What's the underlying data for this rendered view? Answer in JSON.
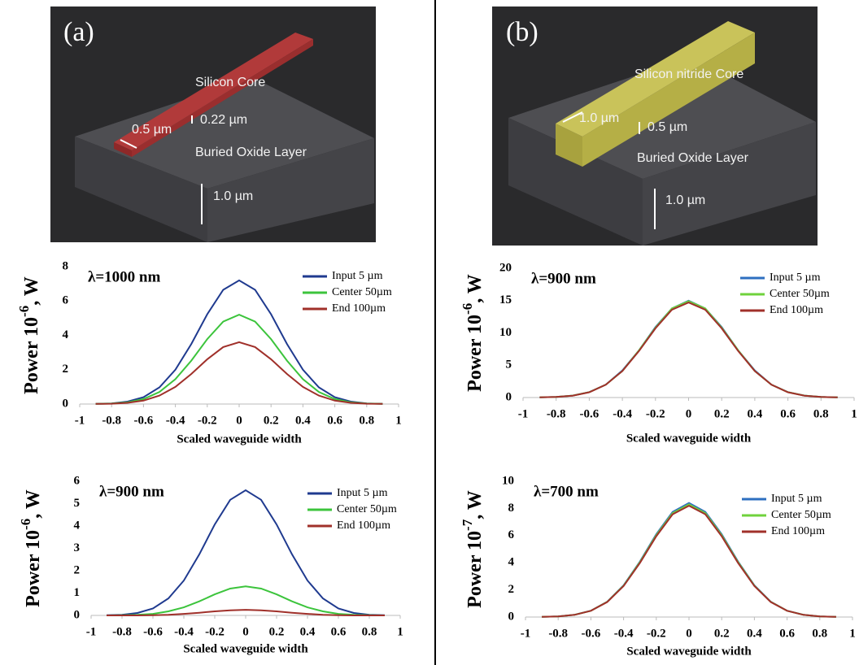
{
  "diagrams": [
    {
      "label": "(a)",
      "core": "Silicon Core",
      "layer": "Buried Oxide Layer",
      "width": "0.5 µm",
      "height": "0.22 µm",
      "oxide": "1.0 µm"
    },
    {
      "label": "(b)",
      "core": "Silicon nitride Core",
      "layer": "Buried Oxide Layer",
      "width": "1.0 µm",
      "height": "0.5 µm",
      "oxide": "1.0 µm"
    }
  ],
  "chart_data": [
    {
      "type": "line",
      "annotation": "λ=1000 nm",
      "xlabel": "Scaled waveguide width",
      "ylabel": "Power 10",
      "ylabel_exponent": "-6",
      "ylabel_unit": ", W",
      "x": [
        -0.9,
        -0.8,
        -0.7,
        -0.6,
        -0.5,
        -0.4,
        -0.3,
        -0.2,
        -0.1,
        0,
        0.1,
        0.2,
        0.3,
        0.4,
        0.5,
        0.6,
        0.7,
        0.8,
        0.9
      ],
      "series": [
        {
          "name": "Input 5 µm",
          "color": "#1f3a8f",
          "values": [
            0.01,
            0.04,
            0.14,
            0.4,
            0.97,
            2.0,
            3.5,
            5.23,
            6.65,
            7.2,
            6.65,
            5.23,
            3.5,
            2.0,
            0.97,
            0.4,
            0.14,
            0.04,
            0.01
          ]
        },
        {
          "name": "Center 50µm",
          "color": "#3cc43c",
          "values": [
            0.01,
            0.03,
            0.1,
            0.29,
            0.7,
            1.45,
            2.53,
            3.78,
            4.8,
            5.2,
            4.8,
            3.78,
            2.53,
            1.45,
            0.7,
            0.29,
            0.1,
            0.03,
            0.01
          ]
        },
        {
          "name": "End 100µm",
          "color": "#a0302a",
          "values": [
            0.01,
            0.02,
            0.07,
            0.2,
            0.49,
            1.0,
            1.75,
            2.61,
            3.32,
            3.6,
            3.32,
            2.61,
            1.75,
            1.0,
            0.49,
            0.2,
            0.07,
            0.02,
            0.01
          ]
        }
      ],
      "xlim": [
        -1,
        1
      ],
      "xticks": [
        -1,
        -0.8,
        -0.6,
        -0.4,
        -0.2,
        0,
        0.2,
        0.4,
        0.6,
        0.8,
        1
      ],
      "ylim": [
        0,
        8
      ],
      "yticks": [
        0,
        2,
        4,
        6,
        8
      ],
      "grid": false,
      "legend": "top-right"
    },
    {
      "type": "line",
      "annotation": "λ=900 nm",
      "xlabel": "Scaled waveguide width",
      "ylabel": "Power 10",
      "ylabel_exponent": "-6",
      "ylabel_unit": ", W",
      "x": [
        -0.9,
        -0.8,
        -0.7,
        -0.6,
        -0.5,
        -0.4,
        -0.3,
        -0.2,
        -0.1,
        0,
        0.1,
        0.2,
        0.3,
        0.4,
        0.5,
        0.6,
        0.7,
        0.8,
        0.9
      ],
      "series": [
        {
          "name": "Input 5 µm",
          "color": "#2e6fc0",
          "values": [
            0.02,
            0.09,
            0.3,
            0.84,
            2.0,
            4.2,
            7.3,
            10.9,
            13.8,
            15,
            13.8,
            10.9,
            7.3,
            4.2,
            2.0,
            0.84,
            0.3,
            0.09,
            0.02
          ]
        },
        {
          "name": "Center 50µm",
          "color": "#6fd23c",
          "values": [
            0.02,
            0.09,
            0.3,
            0.83,
            2.0,
            4.1,
            7.3,
            10.8,
            13.8,
            14.9,
            13.8,
            10.8,
            7.3,
            4.1,
            2.0,
            0.83,
            0.3,
            0.09,
            0.02
          ]
        },
        {
          "name": "End 100µm",
          "color": "#a0302a",
          "values": [
            0.02,
            0.09,
            0.29,
            0.82,
            2.0,
            4.1,
            7.2,
            10.7,
            13.6,
            14.7,
            13.6,
            10.7,
            7.2,
            4.1,
            2.0,
            0.82,
            0.29,
            0.09,
            0.02
          ]
        }
      ],
      "xlim": [
        -1,
        1
      ],
      "xticks": [
        -1,
        -0.8,
        -0.6,
        -0.4,
        -0.2,
        0,
        0.2,
        0.4,
        0.6,
        0.8,
        1
      ],
      "ylim": [
        0,
        20
      ],
      "yticks": [
        0,
        5,
        10,
        15,
        20
      ],
      "grid": false,
      "legend": "top-right"
    },
    {
      "type": "line",
      "annotation": "λ=900 nm",
      "xlabel": "Scaled waveguide width",
      "ylabel": "Power 10",
      "ylabel_exponent": "-6",
      "ylabel_unit": ", W",
      "x": [
        -0.9,
        -0.8,
        -0.7,
        -0.6,
        -0.5,
        -0.4,
        -0.3,
        -0.2,
        -0.1,
        0,
        0.1,
        0.2,
        0.3,
        0.4,
        0.5,
        0.6,
        0.7,
        0.8,
        0.9
      ],
      "series": [
        {
          "name": "Input 5 µm",
          "color": "#1f3a8f",
          "values": [
            0.01,
            0.03,
            0.11,
            0.31,
            0.76,
            1.56,
            2.73,
            4.07,
            5.17,
            5.6,
            5.17,
            4.07,
            2.73,
            1.56,
            0.76,
            0.31,
            0.11,
            0.03,
            0.01
          ]
        },
        {
          "name": "Center 50µm",
          "color": "#3cc43c",
          "values": [
            0,
            0.01,
            0.03,
            0.07,
            0.18,
            0.36,
            0.63,
            0.94,
            1.2,
            1.3,
            1.2,
            0.94,
            0.63,
            0.36,
            0.18,
            0.07,
            0.03,
            0.01,
            0
          ]
        },
        {
          "name": "End 100µm",
          "color": "#a0302a",
          "values": [
            0,
            0,
            0,
            0.01,
            0.03,
            0.07,
            0.12,
            0.18,
            0.23,
            0.25,
            0.23,
            0.18,
            0.12,
            0.07,
            0.03,
            0.01,
            0,
            0,
            0
          ]
        }
      ],
      "xlim": [
        -1,
        1
      ],
      "xticks": [
        -1,
        -0.8,
        -0.6,
        -0.4,
        -0.2,
        0,
        0.2,
        0.4,
        0.6,
        0.8,
        1
      ],
      "ylim": [
        0,
        6
      ],
      "yticks": [
        0,
        1,
        2,
        3,
        4,
        5,
        6
      ],
      "grid": false,
      "legend": "top-right"
    },
    {
      "type": "line",
      "annotation": "λ=700 nm",
      "xlabel": "Scaled waveguide width",
      "ylabel": "Power 10",
      "ylabel_exponent": "-7",
      "ylabel_unit": ", W",
      "x": [
        -0.9,
        -0.8,
        -0.7,
        -0.6,
        -0.5,
        -0.4,
        -0.3,
        -0.2,
        -0.1,
        0,
        0.1,
        0.2,
        0.3,
        0.4,
        0.5,
        0.6,
        0.7,
        0.8,
        0.9
      ],
      "series": [
        {
          "name": "Input 5 µm",
          "color": "#2e6fc0",
          "values": [
            0.01,
            0.05,
            0.17,
            0.47,
            1.13,
            2.34,
            4.09,
            6.1,
            7.75,
            8.4,
            7.75,
            6.1,
            4.09,
            2.34,
            1.13,
            0.47,
            0.17,
            0.05,
            0.01
          ]
        },
        {
          "name": "Center 50µm",
          "color": "#6fd23c",
          "values": [
            0.01,
            0.05,
            0.17,
            0.46,
            1.12,
            2.31,
            4.04,
            6.03,
            7.66,
            8.3,
            7.66,
            6.03,
            4.04,
            2.31,
            1.12,
            0.46,
            0.17,
            0.05,
            0.01
          ]
        },
        {
          "name": "End 100µm",
          "color": "#a0302a",
          "values": [
            0.01,
            0.05,
            0.16,
            0.46,
            1.11,
            2.28,
            3.99,
            5.95,
            7.57,
            8.2,
            7.57,
            5.95,
            3.99,
            2.28,
            1.11,
            0.46,
            0.16,
            0.05,
            0.01
          ]
        }
      ],
      "xlim": [
        -1,
        1
      ],
      "xticks": [
        -1,
        -0.8,
        -0.6,
        -0.4,
        -0.2,
        0,
        0.2,
        0.4,
        0.6,
        0.8,
        1
      ],
      "ylim": [
        0,
        10
      ],
      "yticks": [
        0,
        2,
        4,
        6,
        8,
        10
      ],
      "grid": false,
      "legend": "top-right"
    }
  ]
}
